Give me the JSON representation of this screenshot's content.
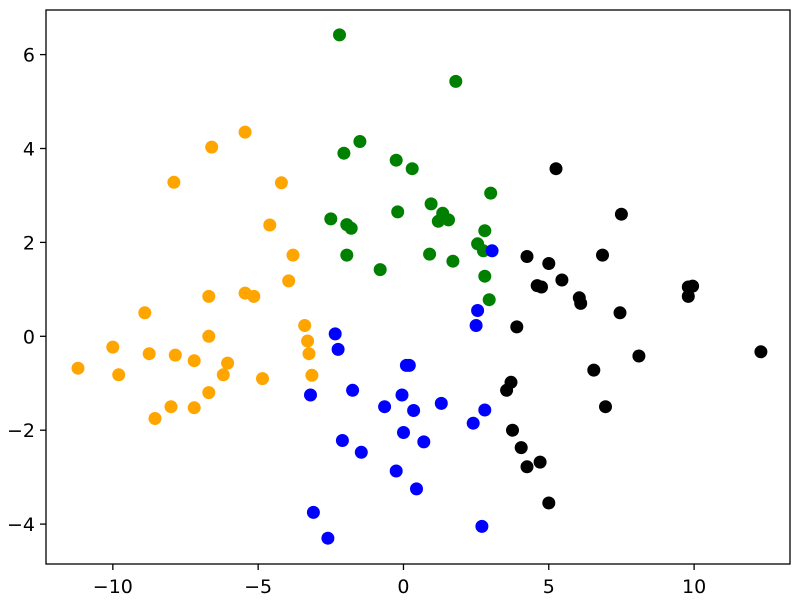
{
  "chart_data": {
    "type": "scatter",
    "title": "",
    "xlabel": "",
    "ylabel": "",
    "xlim": [
      -12.3,
      13.3
    ],
    "ylim": [
      -4.85,
      6.95
    ],
    "grid": false,
    "legend": "none",
    "x_ticks": [
      -10,
      -5,
      0,
      5,
      10
    ],
    "y_ticks": [
      -4,
      -2,
      0,
      2,
      4,
      6
    ],
    "x_tick_labels": [
      "−10",
      "−5",
      "0",
      "5",
      "10"
    ],
    "y_tick_labels": [
      "−4",
      "−2",
      "0",
      "2",
      "4",
      "6"
    ],
    "series": [
      {
        "color": "#ffa500",
        "points": [
          [
            -11.2,
            -0.68
          ],
          [
            -10.0,
            -0.23
          ],
          [
            -9.8,
            -0.82
          ],
          [
            -8.9,
            0.5
          ],
          [
            -8.75,
            -0.37
          ],
          [
            -8.55,
            -1.75
          ],
          [
            -8.0,
            -1.5
          ],
          [
            -7.9,
            3.28
          ],
          [
            -7.85,
            -0.4
          ],
          [
            -7.2,
            -0.52
          ],
          [
            -7.2,
            -1.52
          ],
          [
            -6.7,
            0.85
          ],
          [
            -6.7,
            0.0
          ],
          [
            -6.7,
            -1.2
          ],
          [
            -6.6,
            4.03
          ],
          [
            -6.2,
            -0.82
          ],
          [
            -6.05,
            -0.57
          ],
          [
            -5.45,
            4.35
          ],
          [
            -5.45,
            0.92
          ],
          [
            -5.15,
            0.85
          ],
          [
            -4.85,
            -0.9
          ],
          [
            -4.6,
            2.37
          ],
          [
            -4.2,
            3.27
          ],
          [
            -3.95,
            1.18
          ],
          [
            -3.8,
            1.73
          ],
          [
            -3.4,
            0.23
          ],
          [
            -3.3,
            -0.1
          ],
          [
            -3.25,
            -0.37
          ],
          [
            -3.15,
            -0.83
          ]
        ]
      },
      {
        "color": "#008000",
        "points": [
          [
            -2.2,
            6.42
          ],
          [
            -2.05,
            3.9
          ],
          [
            -1.95,
            1.73
          ],
          [
            -1.95,
            2.38
          ],
          [
            -1.8,
            2.3
          ],
          [
            -1.5,
            4.15
          ],
          [
            -2.5,
            2.5
          ],
          [
            -0.8,
            1.42
          ],
          [
            -0.25,
            3.75
          ],
          [
            -0.2,
            2.65
          ],
          [
            0.3,
            3.57
          ],
          [
            0.9,
            1.75
          ],
          [
            0.95,
            2.82
          ],
          [
            1.2,
            2.45
          ],
          [
            1.35,
            2.62
          ],
          [
            1.55,
            2.48
          ],
          [
            1.7,
            1.6
          ],
          [
            1.8,
            5.43
          ],
          [
            2.55,
            1.97
          ],
          [
            2.75,
            1.82
          ],
          [
            2.8,
            2.25
          ],
          [
            2.8,
            1.28
          ],
          [
            2.95,
            0.78
          ],
          [
            3.0,
            3.05
          ]
        ]
      },
      {
        "color": "#0000ff",
        "points": [
          [
            -3.1,
            -3.75
          ],
          [
            -2.6,
            -4.3
          ],
          [
            -2.35,
            0.05
          ],
          [
            -2.25,
            -0.28
          ],
          [
            -3.2,
            -1.25
          ],
          [
            -2.1,
            -2.22
          ],
          [
            -1.75,
            -1.15
          ],
          [
            -1.45,
            -2.47
          ],
          [
            -0.65,
            -1.5
          ],
          [
            -0.25,
            -2.87
          ],
          [
            -0.05,
            -1.25
          ],
          [
            0.0,
            -2.05
          ],
          [
            0.1,
            -0.62
          ],
          [
            0.2,
            -0.62
          ],
          [
            0.35,
            -1.58
          ],
          [
            0.45,
            -3.25
          ],
          [
            0.7,
            -2.25
          ],
          [
            1.3,
            -1.43
          ],
          [
            2.4,
            -1.85
          ],
          [
            2.5,
            0.23
          ],
          [
            2.55,
            0.55
          ],
          [
            2.7,
            -4.05
          ],
          [
            2.8,
            -1.57
          ],
          [
            3.05,
            1.82
          ]
        ]
      },
      {
        "color": "#000000",
        "points": [
          [
            3.55,
            -1.15
          ],
          [
            3.7,
            -0.98
          ],
          [
            3.75,
            -2.0
          ],
          [
            3.9,
            0.2
          ],
          [
            4.05,
            -2.37
          ],
          [
            4.25,
            1.7
          ],
          [
            4.25,
            -2.78
          ],
          [
            4.6,
            1.08
          ],
          [
            4.7,
            -2.68
          ],
          [
            4.75,
            1.05
          ],
          [
            5.0,
            1.55
          ],
          [
            5.0,
            -3.55
          ],
          [
            5.25,
            3.57
          ],
          [
            5.45,
            1.2
          ],
          [
            6.05,
            0.82
          ],
          [
            6.1,
            0.7
          ],
          [
            6.55,
            -0.72
          ],
          [
            6.85,
            1.73
          ],
          [
            6.95,
            -1.5
          ],
          [
            7.45,
            0.5
          ],
          [
            7.5,
            2.6
          ],
          [
            8.1,
            -0.42
          ],
          [
            9.8,
            1.05
          ],
          [
            9.8,
            0.85
          ],
          [
            9.95,
            1.07
          ],
          [
            12.3,
            -0.33
          ]
        ]
      }
    ]
  }
}
